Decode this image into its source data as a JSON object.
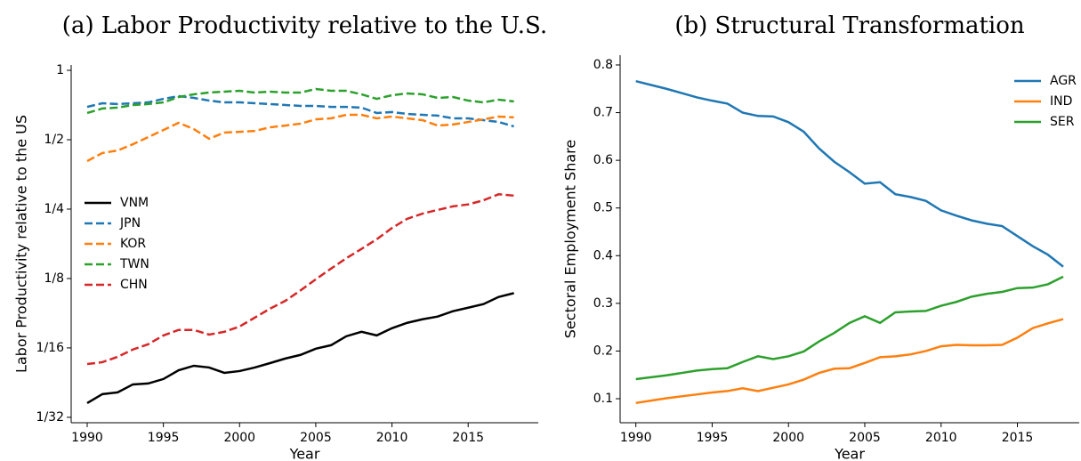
{
  "chart_data": [
    {
      "type": "line",
      "title": "(a) Labor Productivity relative to the U.S.",
      "xlabel": "Year",
      "ylabel": "Labor Productivity relative to the US",
      "yscale": "log",
      "legend": "center left",
      "x": [
        1990,
        1991,
        1992,
        1993,
        1994,
        1995,
        1996,
        1997,
        1998,
        1999,
        2000,
        2001,
        2002,
        2003,
        2004,
        2005,
        2006,
        2007,
        2008,
        2009,
        2010,
        2011,
        2012,
        2013,
        2014,
        2015,
        2016,
        2017,
        2018
      ],
      "xlim": [
        1988.95,
        2019.6
      ],
      "xticks": [
        1990,
        1995,
        2000,
        2005,
        2010,
        2015
      ],
      "ylim": [
        0.0296,
        1.055
      ],
      "yticks": [
        {
          "value": 0.03125,
          "label": "1/32"
        },
        {
          "value": 0.0625,
          "label": "1/16"
        },
        {
          "value": 0.125,
          "label": "1/8"
        },
        {
          "value": 0.25,
          "label": "1/4"
        },
        {
          "value": 0.5,
          "label": "1/2"
        },
        1
      ],
      "series": [
        {
          "name": "VNM",
          "color": "#000000",
          "linestyle": "solid",
          "values": [
            0.036,
            0.0394,
            0.0401,
            0.0434,
            0.0438,
            0.0458,
            0.05,
            0.0523,
            0.0514,
            0.0487,
            0.0496,
            0.0514,
            0.0537,
            0.0562,
            0.0583,
            0.062,
            0.0642,
            0.0702,
            0.0734,
            0.0708,
            0.0761,
            0.0803,
            0.0832,
            0.0855,
            0.0902,
            0.0934,
            0.0968,
            0.104,
            0.108
          ]
        },
        {
          "name": "JPN",
          "color": "#1f77b4",
          "linestyle": "dashed",
          "values": [
            0.694,
            0.72,
            0.714,
            0.72,
            0.726,
            0.752,
            0.773,
            0.759,
            0.739,
            0.726,
            0.726,
            0.72,
            0.714,
            0.707,
            0.701,
            0.701,
            0.694,
            0.694,
            0.689,
            0.653,
            0.659,
            0.647,
            0.641,
            0.636,
            0.619,
            0.619,
            0.608,
            0.597,
            0.571
          ]
        },
        {
          "name": "KOR",
          "color": "#ff7f0e",
          "linestyle": "dashed",
          "values": [
            0.404,
            0.438,
            0.449,
            0.478,
            0.513,
            0.551,
            0.592,
            0.556,
            0.505,
            0.537,
            0.541,
            0.546,
            0.566,
            0.576,
            0.587,
            0.613,
            0.619,
            0.641,
            0.641,
            0.619,
            0.63,
            0.619,
            0.608,
            0.576,
            0.582,
            0.597,
            0.613,
            0.63,
            0.625
          ]
        },
        {
          "name": "TWN",
          "color": "#2ca02c",
          "linestyle": "dashed",
          "values": [
            0.653,
            0.683,
            0.689,
            0.707,
            0.714,
            0.726,
            0.766,
            0.787,
            0.801,
            0.808,
            0.815,
            0.801,
            0.808,
            0.801,
            0.801,
            0.83,
            0.815,
            0.815,
            0.787,
            0.752,
            0.78,
            0.794,
            0.787,
            0.759,
            0.766,
            0.739,
            0.726,
            0.746,
            0.733
          ]
        },
        {
          "name": "CHN",
          "color": "#d62728",
          "linestyle": "dashed",
          "values": [
            0.0532,
            0.0542,
            0.0572,
            0.0615,
            0.0648,
            0.0708,
            0.0748,
            0.0748,
            0.0714,
            0.0734,
            0.0774,
            0.0846,
            0.0925,
            0.1,
            0.111,
            0.124,
            0.138,
            0.153,
            0.168,
            0.185,
            0.207,
            0.227,
            0.239,
            0.248,
            0.257,
            0.262,
            0.273,
            0.29,
            0.286
          ]
        }
      ]
    },
    {
      "type": "line",
      "title": "(b) Structural Transformation",
      "xlabel": "Year",
      "ylabel": "Sectoral Employment Share",
      "yscale": "linear",
      "legend": "upper right",
      "x": [
        1990,
        1991,
        1992,
        1993,
        1994,
        1995,
        1996,
        1997,
        1998,
        1999,
        2000,
        2001,
        2002,
        2003,
        2004,
        2005,
        2006,
        2007,
        2008,
        2009,
        2010,
        2011,
        2012,
        2013,
        2014,
        2015,
        2016,
        2017,
        2018
      ],
      "xlim": [
        1988.97,
        2019.05
      ],
      "xticks": [
        1990,
        1995,
        2000,
        2005,
        2010,
        2015
      ],
      "ylim": [
        0.0496,
        0.8205
      ],
      "yticks": [
        0.1,
        0.2,
        0.3,
        0.4,
        0.5,
        0.6,
        0.7,
        0.8
      ],
      "series": [
        {
          "name": "AGR",
          "color": "#1f77b4",
          "linestyle": "solid",
          "values": [
            0.766,
            0.758,
            0.75,
            0.741,
            0.732,
            0.725,
            0.719,
            0.7,
            0.693,
            0.692,
            0.68,
            0.66,
            0.625,
            0.597,
            0.575,
            0.551,
            0.554,
            0.529,
            0.523,
            0.515,
            0.495,
            0.484,
            0.474,
            0.467,
            0.462,
            0.441,
            0.42,
            0.402,
            0.377
          ]
        },
        {
          "name": "IND",
          "color": "#ff7f0e",
          "linestyle": "solid",
          "values": [
            0.091,
            0.096,
            0.101,
            0.105,
            0.109,
            0.113,
            0.116,
            0.122,
            0.116,
            0.123,
            0.13,
            0.14,
            0.154,
            0.163,
            0.164,
            0.175,
            0.187,
            0.189,
            0.193,
            0.2,
            0.21,
            0.213,
            0.212,
            0.212,
            0.213,
            0.228,
            0.248,
            0.258,
            0.267
          ]
        },
        {
          "name": "SER",
          "color": "#2ca02c",
          "linestyle": "solid",
          "values": [
            0.141,
            0.145,
            0.149,
            0.154,
            0.159,
            0.162,
            0.164,
            0.177,
            0.189,
            0.183,
            0.189,
            0.199,
            0.22,
            0.238,
            0.259,
            0.273,
            0.259,
            0.281,
            0.283,
            0.284,
            0.295,
            0.303,
            0.314,
            0.32,
            0.324,
            0.332,
            0.333,
            0.34,
            0.356
          ]
        }
      ]
    }
  ]
}
